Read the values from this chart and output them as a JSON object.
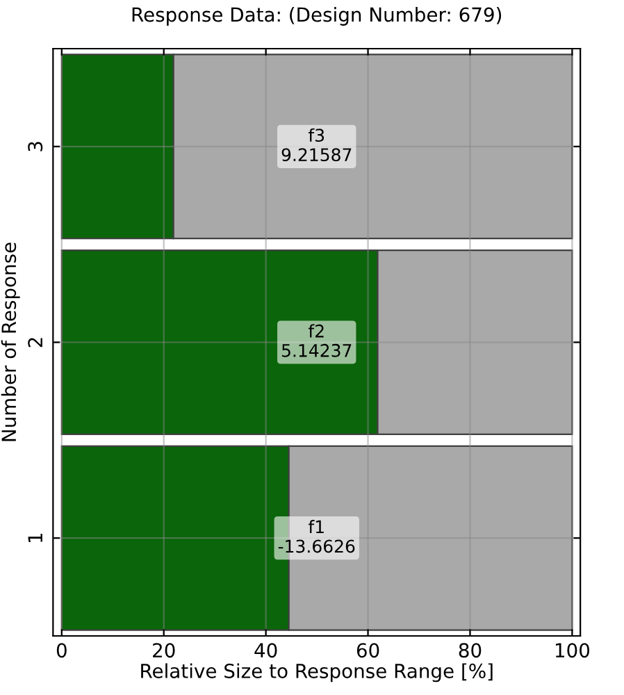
{
  "chart_data": {
    "type": "bar",
    "orientation": "horizontal",
    "stacked": true,
    "title": "Response Data: (Design Number: 679)",
    "xlabel": "Relative Size to Response Range [%]",
    "ylabel": "Number of Response",
    "categories": [
      "3",
      "2",
      "1"
    ],
    "series": [
      {
        "color": "#0b650b",
        "values": [
          21.9,
          61.9,
          44.5
        ]
      },
      {
        "color": "#a9a9a9",
        "values": [
          78.1,
          38.1,
          55.5
        ]
      }
    ],
    "xlim": [
      -1.7,
      101.6
    ],
    "xticks": [
      0,
      20,
      40,
      60,
      80,
      100
    ],
    "grid": true,
    "annotations": [
      "f3\n9.21587",
      "f2\n5.14237",
      "f1\n-13.6626"
    ]
  }
}
